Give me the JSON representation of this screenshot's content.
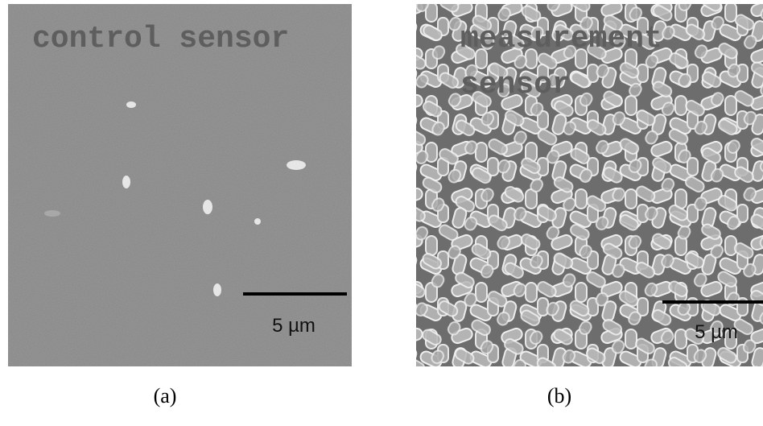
{
  "panels": [
    {
      "label_lines": [
        "control sensor"
      ],
      "scale_bar": "5 µm",
      "caption": "(a)"
    },
    {
      "label_lines": [
        "measurement",
        "sensor"
      ],
      "scale_bar": "5 µm",
      "caption": "(b)"
    }
  ]
}
